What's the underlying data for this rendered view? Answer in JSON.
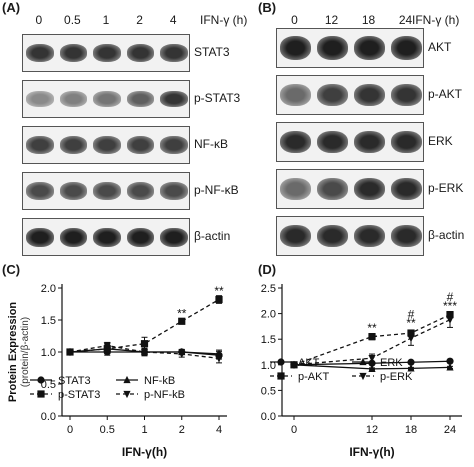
{
  "panelA": {
    "label": "(A)",
    "time_header": "IFN-γ (h)",
    "timepoints": [
      "0",
      "0.5",
      "1",
      "2",
      "4"
    ],
    "blots": [
      {
        "label": "STAT3",
        "intensity": [
          0.85,
          0.85,
          0.85,
          0.85,
          0.85
        ],
        "height": 0.45
      },
      {
        "label": "p-STAT3",
        "intensity": [
          0.45,
          0.5,
          0.55,
          0.65,
          0.85
        ],
        "height": 0.4
      },
      {
        "label": "NF-κB",
        "intensity": [
          0.8,
          0.8,
          0.8,
          0.8,
          0.8
        ],
        "height": 0.45
      },
      {
        "label": "p-NF-κB",
        "intensity": [
          0.75,
          0.75,
          0.75,
          0.75,
          0.75
        ],
        "height": 0.45
      },
      {
        "label": "β-actin",
        "intensity": [
          0.95,
          0.95,
          0.95,
          0.95,
          0.95
        ],
        "height": 0.5
      }
    ]
  },
  "panelB": {
    "label": "(B)",
    "time_header": "IFN-γ (h)",
    "timepoints": [
      "0",
      "12",
      "18",
      "24"
    ],
    "blots": [
      {
        "label": "AKT",
        "intensity": [
          0.95,
          0.95,
          0.95,
          0.95
        ],
        "height": 0.6
      },
      {
        "label": "p-AKT",
        "intensity": [
          0.6,
          0.8,
          0.85,
          0.85
        ],
        "height": 0.55
      },
      {
        "label": "ERK",
        "intensity": [
          0.9,
          0.9,
          0.9,
          0.9
        ],
        "height": 0.55
      },
      {
        "label": "p-ERK",
        "intensity": [
          0.6,
          0.75,
          0.9,
          0.9
        ],
        "height": 0.55
      },
      {
        "label": "β-actin",
        "intensity": [
          0.9,
          0.9,
          0.9,
          0.9
        ],
        "height": 0.55
      }
    ]
  },
  "chart_data": [
    {
      "panel": "(C)",
      "type": "line",
      "ylabel": "Protein Expression",
      "ylabel2": "(protein/β-actin)",
      "xlabel": "IFN-γ(h)",
      "categories": [
        "0",
        "0.5",
        "1",
        "2",
        "4"
      ],
      "ylim": [
        0.0,
        2.0
      ],
      "yticks": [
        "0.0",
        "0.5",
        "1.0",
        "1.5",
        "2.0"
      ],
      "series": [
        {
          "name": "STAT3",
          "values": [
            1.0,
            1.0,
            1.0,
            1.0,
            0.95
          ],
          "err": [
            0,
            0.05,
            0.04,
            0.04,
            0.06
          ],
          "marker": "circle",
          "dash": false
        },
        {
          "name": "NF-kB",
          "values": [
            1.0,
            1.05,
            1.0,
            1.0,
            0.97
          ],
          "err": [
            0,
            0.05,
            0.05,
            0.04,
            0.06
          ],
          "marker": "triangle-up",
          "dash": false
        },
        {
          "name": "p-STAT3",
          "values": [
            1.0,
            1.05,
            1.13,
            1.48,
            1.82
          ],
          "err": [
            0,
            0.06,
            0.1,
            0.04,
            0.06
          ],
          "marker": "square",
          "dash": true
        },
        {
          "name": "p-NF-kB",
          "values": [
            1.0,
            1.1,
            1.0,
            0.97,
            0.9
          ],
          "err": [
            0,
            0.05,
            0.06,
            0.05,
            0.07
          ],
          "marker": "triangle-down",
          "dash": true
        }
      ],
      "legend": [
        "STAT3",
        "NF-kB",
        "p-STAT3",
        "p-NF-kB"
      ],
      "annotations": [
        {
          "x": "2",
          "text": "**",
          "y": 1.6
        },
        {
          "x": "4",
          "text": "**",
          "y": 1.95
        }
      ]
    },
    {
      "panel": "(D)",
      "type": "line",
      "xlabel": "IFN-γ(h)",
      "x": [
        0,
        12,
        18,
        24
      ],
      "categories": [
        "0",
        "12",
        "18",
        "24"
      ],
      "ylim": [
        0.0,
        2.5
      ],
      "yticks": [
        "0.0",
        "0.5",
        "1.0",
        "1.5",
        "2.0",
        "2.5"
      ],
      "series": [
        {
          "name": "AKT",
          "values": [
            1.0,
            1.03,
            1.05,
            1.07
          ],
          "err": [
            0,
            0.02,
            0.02,
            0.02
          ],
          "marker": "circle",
          "dash": false
        },
        {
          "name": "ERK",
          "values": [
            1.0,
            0.92,
            0.93,
            0.95
          ],
          "err": [
            0,
            0.02,
            0.02,
            0.02
          ],
          "marker": "triangle-up",
          "dash": false
        },
        {
          "name": "p-AKT",
          "values": [
            1.0,
            1.55,
            1.62,
            1.98
          ],
          "err": [
            0,
            0.06,
            0.06,
            0.06
          ],
          "marker": "square",
          "dash": true
        },
        {
          "name": "p-ERK",
          "values": [
            1.0,
            1.13,
            1.52,
            1.88
          ],
          "err": [
            0,
            0.08,
            0.14,
            0.15
          ],
          "marker": "triangle-down",
          "dash": true
        }
      ],
      "legend": [
        "AKT",
        "ERK",
        "p-AKT",
        "p-ERK"
      ],
      "annotations": [
        {
          "x": 12,
          "text": "**",
          "y": 1.72
        },
        {
          "x": 18,
          "text": "#",
          "y": 1.98
        },
        {
          "x": 18,
          "text": "**",
          "y": 1.82
        },
        {
          "x": 24,
          "text": "#",
          "y": 2.32
        },
        {
          "x": 24,
          "text": "***",
          "y": 2.15
        }
      ]
    }
  ]
}
